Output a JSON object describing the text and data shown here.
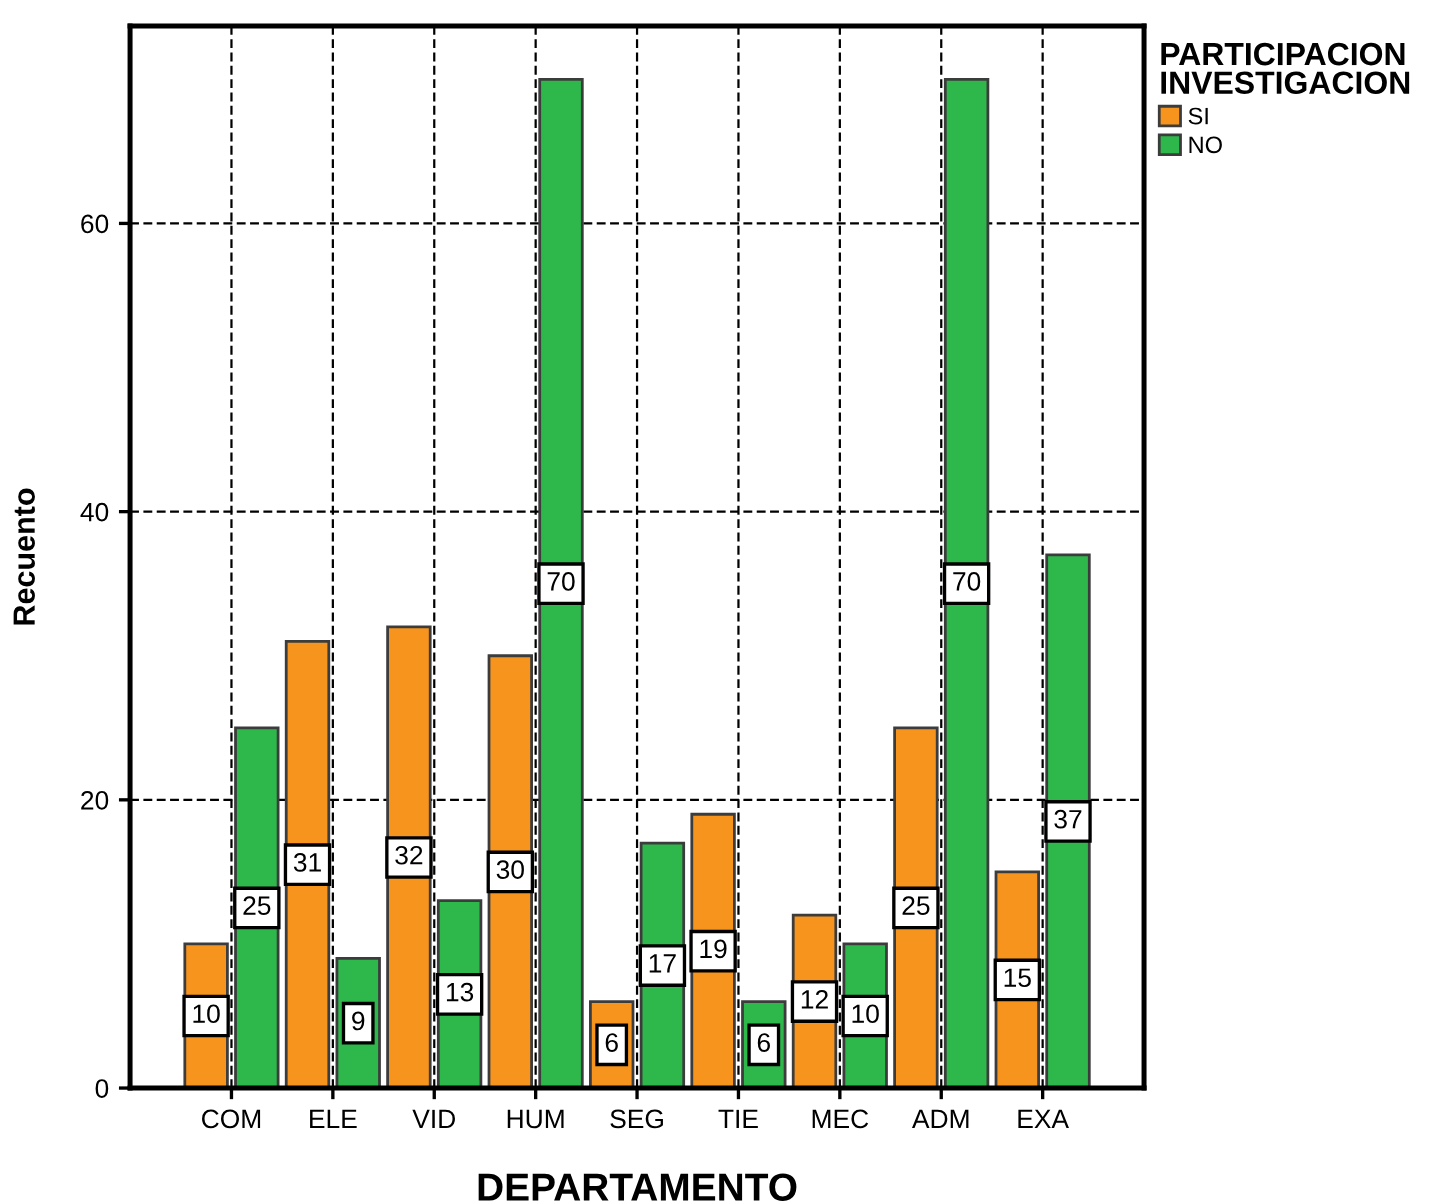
{
  "chart_data": {
    "type": "bar",
    "xlabel": "DEPARTAMENTO",
    "ylabel": "Recuento",
    "legend_title": "PARTICIPACION INVESTIGACION",
    "categories": [
      "COM",
      "ELE",
      "VID",
      "HUM",
      "SEG",
      "TIE",
      "MEC",
      "ADM",
      "EXA"
    ],
    "series": [
      {
        "name": "SI",
        "color": "#f7941e",
        "values": [
          10,
          31,
          32,
          30,
          6,
          19,
          12,
          25,
          15
        ]
      },
      {
        "name": "NO",
        "color": "#2eb84b",
        "values": [
          25,
          9,
          13,
          70,
          17,
          6,
          10,
          70,
          37
        ]
      }
    ],
    "ylim": [
      0,
      73.7
    ],
    "yticks": [
      0,
      20,
      40,
      60
    ],
    "grid": true,
    "legend": "top right",
    "data_labels": true
  }
}
